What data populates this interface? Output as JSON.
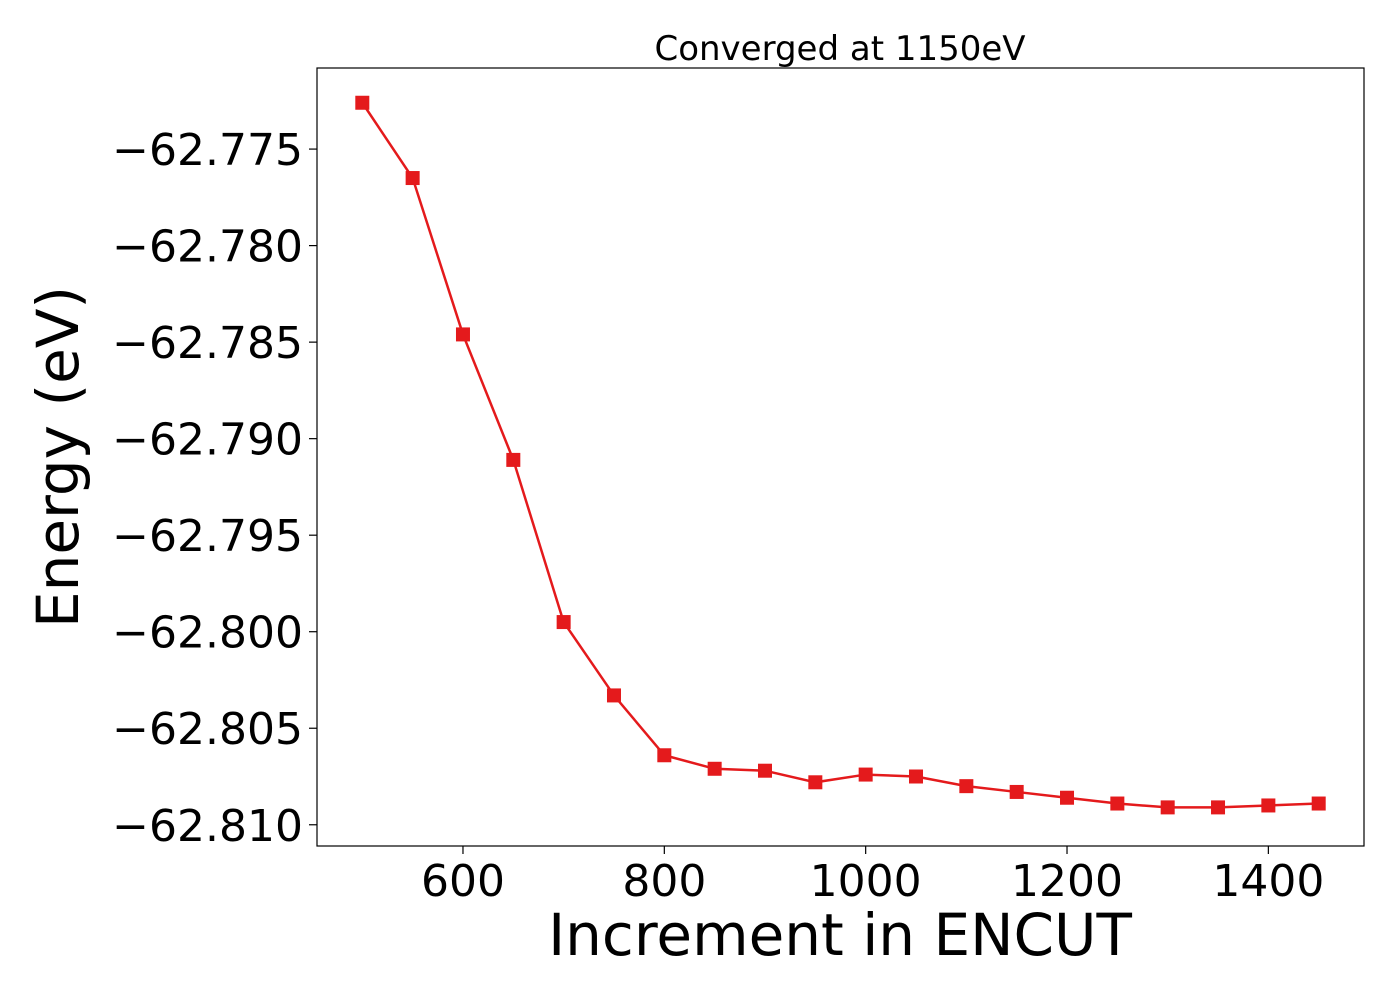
{
  "chart_data": {
    "type": "line",
    "title": "Converged at 1150eV",
    "xlabel": "Increment in ENCUT",
    "ylabel": "Energy (eV)",
    "xlim": [
      455,
      1495
    ],
    "ylim": [
      -62.8111,
      -62.7708
    ],
    "x_ticks": [
      600,
      800,
      1000,
      1200,
      1400
    ],
    "y_ticks": [
      -62.775,
      -62.78,
      -62.785,
      -62.79,
      -62.795,
      -62.8,
      -62.805,
      -62.81
    ],
    "x_tick_labels": [
      "600",
      "800",
      "1000",
      "1200",
      "1400"
    ],
    "y_tick_labels": [
      "−62.775",
      "−62.780",
      "−62.785",
      "−62.790",
      "−62.795",
      "−62.800",
      "−62.805",
      "−62.810"
    ],
    "grid": false,
    "series": [
      {
        "color": "#e41a1c",
        "marker": "square",
        "x": [
          500,
          550,
          600,
          650,
          700,
          750,
          800,
          850,
          900,
          950,
          1000,
          1050,
          1100,
          1150,
          1200,
          1250,
          1300,
          1350,
          1400,
          1450
        ],
        "y": [
          -62.7726,
          -62.7765,
          -62.7846,
          -62.7911,
          -62.7995,
          -62.8033,
          -62.8064,
          -62.8071,
          -62.8072,
          -62.8078,
          -62.8074,
          -62.8075,
          -62.808,
          -62.8083,
          -62.8086,
          -62.8089,
          -62.8091,
          -62.8091,
          -62.809,
          -62.8089
        ]
      }
    ]
  }
}
